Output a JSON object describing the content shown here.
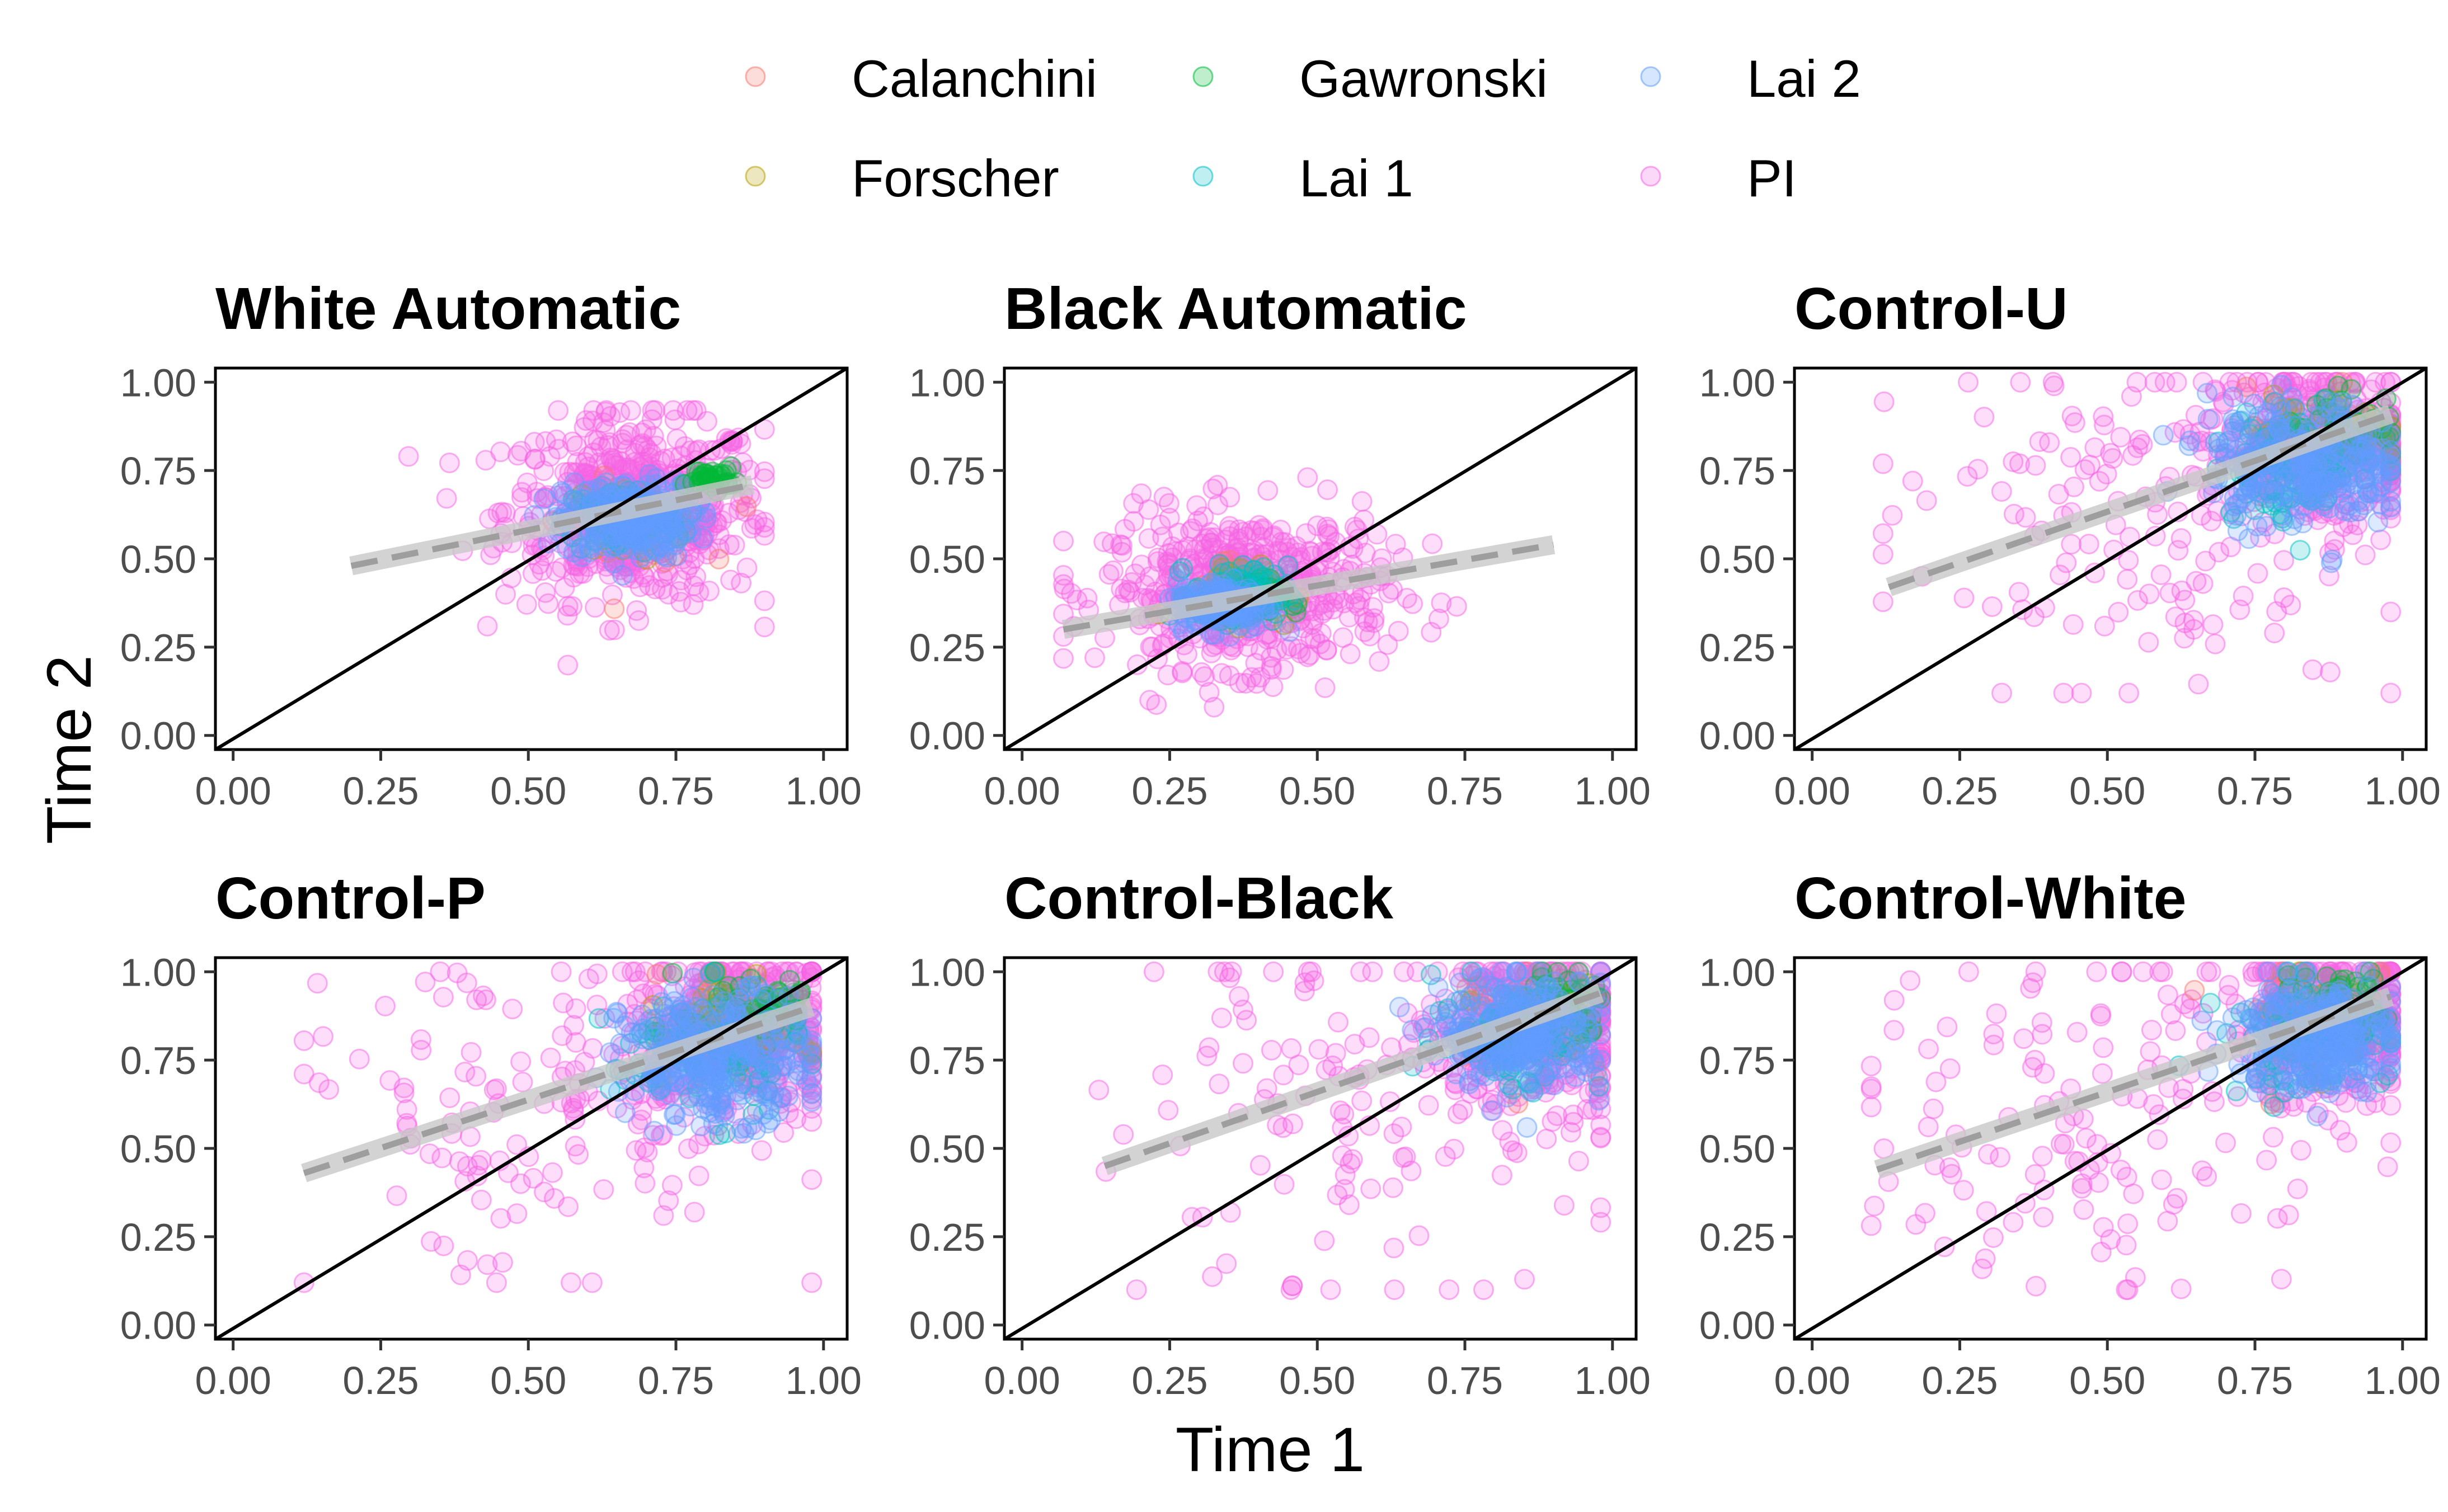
{
  "figure": {
    "xlabel": "Time 1",
    "ylabel": "Time 2"
  },
  "legend": {
    "placement": "top",
    "items": [
      {
        "name": "Calanchini",
        "color": "#F8766D"
      },
      {
        "name": "Forscher",
        "color": "#B79F00"
      },
      {
        "name": "Gawronski",
        "color": "#00BA38"
      },
      {
        "name": "Lai 1",
        "color": "#00BFC4"
      },
      {
        "name": "Lai 2",
        "color": "#619CFF"
      },
      {
        "name": "PI",
        "color": "#F564E3"
      }
    ]
  },
  "colors": {
    "identity_line": "#000000",
    "fit_line": "#9e9e9e",
    "fit_band": "#c8c8c8"
  },
  "chart_data": [
    {
      "type": "scatter",
      "title": "White Automatic",
      "xlim": [
        0,
        1
      ],
      "ylim": [
        0,
        1
      ],
      "x_ticks": [
        "0.00",
        "0.25",
        "0.50",
        "0.75",
        "1.00"
      ],
      "y_ticks": [
        "0.00",
        "0.25",
        "0.50",
        "0.75",
        "1.00"
      ],
      "identity_line": true,
      "fit_line": {
        "x": [
          0.2,
          0.88
        ],
        "y": [
          0.48,
          0.71
        ]
      },
      "clusters": [
        {
          "series": "PI",
          "cx": 0.68,
          "cy": 0.64,
          "sx": 0.11,
          "sy": 0.13,
          "n": 520,
          "xr": [
            0.2,
            0.9
          ],
          "yr": [
            0.14,
            0.92
          ]
        },
        {
          "series": "Calanchini",
          "cx": 0.68,
          "cy": 0.6,
          "sx": 0.06,
          "sy": 0.06,
          "n": 25,
          "xr": [
            0.45,
            0.88
          ],
          "yr": [
            0.35,
            0.8
          ]
        },
        {
          "series": "Forscher",
          "cx": 0.67,
          "cy": 0.61,
          "sx": 0.05,
          "sy": 0.05,
          "n": 20,
          "xr": [
            0.45,
            0.88
          ],
          "yr": [
            0.4,
            0.8
          ]
        },
        {
          "series": "Lai 1",
          "cx": 0.66,
          "cy": 0.61,
          "sx": 0.05,
          "sy": 0.05,
          "n": 90,
          "xr": [
            0.45,
            0.88
          ],
          "yr": [
            0.45,
            0.78
          ]
        },
        {
          "series": "Lai 2",
          "cx": 0.67,
          "cy": 0.61,
          "sx": 0.055,
          "sy": 0.055,
          "n": 240,
          "xr": [
            0.45,
            0.88
          ],
          "yr": [
            0.45,
            0.8
          ]
        },
        {
          "series": "Gawronski",
          "cx": 0.81,
          "cy": 0.73,
          "sx": 0.02,
          "sy": 0.015,
          "n": 35,
          "xr": [
            0.75,
            0.88
          ],
          "yr": [
            0.68,
            0.77
          ]
        }
      ]
    },
    {
      "type": "scatter",
      "title": "Black Automatic",
      "xlim": [
        0,
        1
      ],
      "ylim": [
        0,
        1
      ],
      "x_ticks": [
        "0.00",
        "0.25",
        "0.50",
        "0.75",
        "1.00"
      ],
      "y_ticks": [
        "0.00",
        "0.25",
        "0.50",
        "0.75",
        "1.00"
      ],
      "identity_line": true,
      "fit_line": {
        "x": [
          0.07,
          0.9
        ],
        "y": [
          0.3,
          0.54
        ]
      },
      "clusters": [
        {
          "series": "PI",
          "cx": 0.38,
          "cy": 0.41,
          "sx": 0.12,
          "sy": 0.11,
          "n": 520,
          "xr": [
            0.07,
            0.9
          ],
          "yr": [
            0.08,
            0.82
          ]
        },
        {
          "series": "Calanchini",
          "cx": 0.37,
          "cy": 0.42,
          "sx": 0.05,
          "sy": 0.05,
          "n": 20,
          "xr": [
            0.2,
            0.55
          ],
          "yr": [
            0.25,
            0.66
          ]
        },
        {
          "series": "Forscher",
          "cx": 0.36,
          "cy": 0.42,
          "sx": 0.05,
          "sy": 0.05,
          "n": 20,
          "xr": [
            0.2,
            0.55
          ],
          "yr": [
            0.25,
            0.66
          ]
        },
        {
          "series": "Gawronski",
          "cx": 0.38,
          "cy": 0.38,
          "sx": 0.03,
          "sy": 0.03,
          "n": 60,
          "xr": [
            0.3,
            0.47
          ],
          "yr": [
            0.3,
            0.5
          ]
        },
        {
          "series": "Lai 1",
          "cx": 0.37,
          "cy": 0.4,
          "sx": 0.04,
          "sy": 0.04,
          "n": 90,
          "xr": [
            0.25,
            0.5
          ],
          "yr": [
            0.28,
            0.52
          ]
        },
        {
          "series": "Lai 2",
          "cx": 0.34,
          "cy": 0.37,
          "sx": 0.04,
          "sy": 0.035,
          "n": 160,
          "xr": [
            0.25,
            0.5
          ],
          "yr": [
            0.28,
            0.5
          ]
        }
      ]
    },
    {
      "type": "scatter",
      "title": "Control-U",
      "xlim": [
        0,
        1
      ],
      "ylim": [
        0,
        1
      ],
      "x_ticks": [
        "0.00",
        "0.25",
        "0.50",
        "0.75",
        "1.00"
      ],
      "y_ticks": [
        "0.00",
        "0.25",
        "0.50",
        "0.75",
        "1.00"
      ],
      "identity_line": true,
      "fit_line": {
        "x": [
          0.13,
          0.98
        ],
        "y": [
          0.42,
          0.91
        ]
      },
      "clusters": [
        {
          "series": "PI",
          "cx": 0.86,
          "cy": 0.82,
          "sx": 0.1,
          "sy": 0.12,
          "n": 380,
          "xr": [
            0.55,
            0.98
          ],
          "yr": [
            0.4,
            1.0
          ]
        },
        {
          "series": "PI",
          "cx": 0.5,
          "cy": 0.6,
          "sx": 0.22,
          "sy": 0.25,
          "n": 140,
          "xr": [
            0.12,
            0.98
          ],
          "yr": [
            0.12,
            1.0
          ]
        },
        {
          "series": "Calanchini",
          "cx": 0.86,
          "cy": 0.86,
          "sx": 0.06,
          "sy": 0.06,
          "n": 25,
          "xr": [
            0.6,
            0.98
          ],
          "yr": [
            0.35,
            1.0
          ]
        },
        {
          "series": "Forscher",
          "cx": 0.88,
          "cy": 0.87,
          "sx": 0.05,
          "sy": 0.05,
          "n": 25,
          "xr": [
            0.65,
            0.98
          ],
          "yr": [
            0.6,
            1.0
          ]
        },
        {
          "series": "Gawronski",
          "cx": 0.9,
          "cy": 0.88,
          "sx": 0.05,
          "sy": 0.05,
          "n": 40,
          "xr": [
            0.65,
            0.98
          ],
          "yr": [
            0.45,
            1.0
          ]
        },
        {
          "series": "Lai 1",
          "cx": 0.82,
          "cy": 0.77,
          "sx": 0.07,
          "sy": 0.08,
          "n": 90,
          "xr": [
            0.6,
            0.98
          ],
          "yr": [
            0.45,
            1.0
          ]
        },
        {
          "series": "Lai 2",
          "cx": 0.83,
          "cy": 0.77,
          "sx": 0.08,
          "sy": 0.09,
          "n": 260,
          "xr": [
            0.58,
            0.98
          ],
          "yr": [
            0.44,
            1.0
          ]
        }
      ]
    },
    {
      "type": "scatter",
      "title": "Control-P",
      "xlim": [
        0,
        1
      ],
      "ylim": [
        0,
        1
      ],
      "x_ticks": [
        "0.00",
        "0.25",
        "0.50",
        "0.75",
        "1.00"
      ],
      "y_ticks": [
        "0.00",
        "0.25",
        "0.50",
        "0.75",
        "1.00"
      ],
      "identity_line": true,
      "fit_line": {
        "x": [
          0.12,
          0.98
        ],
        "y": [
          0.43,
          0.9
        ]
      },
      "clusters": [
        {
          "series": "PI",
          "cx": 0.86,
          "cy": 0.82,
          "sx": 0.1,
          "sy": 0.12,
          "n": 380,
          "xr": [
            0.55,
            0.98
          ],
          "yr": [
            0.4,
            1.0
          ]
        },
        {
          "series": "PI",
          "cx": 0.5,
          "cy": 0.6,
          "sx": 0.22,
          "sy": 0.25,
          "n": 140,
          "xr": [
            0.12,
            0.98
          ],
          "yr": [
            0.12,
            1.0
          ]
        },
        {
          "series": "Calanchini",
          "cx": 0.84,
          "cy": 0.84,
          "sx": 0.07,
          "sy": 0.08,
          "n": 25,
          "xr": [
            0.45,
            0.98
          ],
          "yr": [
            0.3,
            1.0
          ]
        },
        {
          "series": "Forscher",
          "cx": 0.86,
          "cy": 0.86,
          "sx": 0.06,
          "sy": 0.06,
          "n": 25,
          "xr": [
            0.6,
            0.98
          ],
          "yr": [
            0.5,
            1.0
          ]
        },
        {
          "series": "Gawronski",
          "cx": 0.88,
          "cy": 0.9,
          "sx": 0.06,
          "sy": 0.06,
          "n": 50,
          "xr": [
            0.65,
            0.98
          ],
          "yr": [
            0.3,
            1.0
          ]
        },
        {
          "series": "Lai 1",
          "cx": 0.8,
          "cy": 0.76,
          "sx": 0.08,
          "sy": 0.09,
          "n": 90,
          "xr": [
            0.55,
            0.98
          ],
          "yr": [
            0.4,
            1.0
          ]
        },
        {
          "series": "Lai 2",
          "cx": 0.82,
          "cy": 0.76,
          "sx": 0.08,
          "sy": 0.09,
          "n": 270,
          "xr": [
            0.55,
            0.98
          ],
          "yr": [
            0.45,
            1.0
          ]
        }
      ]
    },
    {
      "type": "scatter",
      "title": "Control-Black",
      "xlim": [
        0,
        1
      ],
      "ylim": [
        0,
        1
      ],
      "x_ticks": [
        "0.00",
        "0.25",
        "0.50",
        "0.75",
        "1.00"
      ],
      "y_ticks": [
        "0.00",
        "0.25",
        "0.50",
        "0.75",
        "1.00"
      ],
      "identity_line": true,
      "fit_line": {
        "x": [
          0.14,
          0.98
        ],
        "y": [
          0.45,
          0.94
        ]
      },
      "clusters": [
        {
          "series": "PI",
          "cx": 0.87,
          "cy": 0.85,
          "sx": 0.09,
          "sy": 0.11,
          "n": 360,
          "xr": [
            0.55,
            0.98
          ],
          "yr": [
            0.4,
            1.0
          ]
        },
        {
          "series": "PI",
          "cx": 0.55,
          "cy": 0.6,
          "sx": 0.22,
          "sy": 0.26,
          "n": 140,
          "xr": [
            0.13,
            0.98
          ],
          "yr": [
            0.1,
            1.0
          ]
        },
        {
          "series": "Calanchini",
          "cx": 0.86,
          "cy": 0.86,
          "sx": 0.06,
          "sy": 0.07,
          "n": 20,
          "xr": [
            0.6,
            0.98
          ],
          "yr": [
            0.25,
            1.0
          ]
        },
        {
          "series": "Forscher",
          "cx": 0.88,
          "cy": 0.88,
          "sx": 0.05,
          "sy": 0.05,
          "n": 20,
          "xr": [
            0.65,
            0.98
          ],
          "yr": [
            0.45,
            1.0
          ]
        },
        {
          "series": "Gawronski",
          "cx": 0.92,
          "cy": 0.91,
          "sx": 0.04,
          "sy": 0.05,
          "n": 45,
          "xr": [
            0.7,
            0.98
          ],
          "yr": [
            0.5,
            1.0
          ]
        },
        {
          "series": "Lai 1",
          "cx": 0.84,
          "cy": 0.82,
          "sx": 0.07,
          "sy": 0.08,
          "n": 80,
          "xr": [
            0.6,
            0.98
          ],
          "yr": [
            0.5,
            1.0
          ]
        },
        {
          "series": "Lai 2",
          "cx": 0.85,
          "cy": 0.83,
          "sx": 0.07,
          "sy": 0.08,
          "n": 250,
          "xr": [
            0.6,
            0.98
          ],
          "yr": [
            0.5,
            1.0
          ]
        }
      ]
    },
    {
      "type": "scatter",
      "title": "Control-White",
      "xlim": [
        0,
        1
      ],
      "ylim": [
        0,
        1
      ],
      "x_ticks": [
        "0.00",
        "0.25",
        "0.50",
        "0.75",
        "1.00"
      ],
      "y_ticks": [
        "0.00",
        "0.25",
        "0.50",
        "0.75",
        "1.00"
      ],
      "identity_line": true,
      "fit_line": {
        "x": [
          0.11,
          0.98
        ],
        "y": [
          0.44,
          0.93
        ]
      },
      "clusters": [
        {
          "series": "PI",
          "cx": 0.87,
          "cy": 0.85,
          "sx": 0.09,
          "sy": 0.11,
          "n": 360,
          "xr": [
            0.55,
            0.98
          ],
          "yr": [
            0.4,
            1.0
          ]
        },
        {
          "series": "PI",
          "cx": 0.5,
          "cy": 0.6,
          "sx": 0.22,
          "sy": 0.26,
          "n": 140,
          "xr": [
            0.1,
            0.98
          ],
          "yr": [
            0.1,
            1.0
          ]
        },
        {
          "series": "Calanchini",
          "cx": 0.86,
          "cy": 0.84,
          "sx": 0.07,
          "sy": 0.09,
          "n": 20,
          "xr": [
            0.6,
            0.98
          ],
          "yr": [
            0.25,
            1.0
          ]
        },
        {
          "series": "Forscher",
          "cx": 0.88,
          "cy": 0.86,
          "sx": 0.05,
          "sy": 0.06,
          "n": 20,
          "xr": [
            0.65,
            0.98
          ],
          "yr": [
            0.45,
            1.0
          ]
        },
        {
          "series": "Gawronski",
          "cx": 0.9,
          "cy": 0.89,
          "sx": 0.05,
          "sy": 0.06,
          "n": 45,
          "xr": [
            0.7,
            0.98
          ],
          "yr": [
            0.35,
            1.0
          ]
        },
        {
          "series": "Lai 1",
          "cx": 0.84,
          "cy": 0.81,
          "sx": 0.07,
          "sy": 0.08,
          "n": 80,
          "xr": [
            0.6,
            0.98
          ],
          "yr": [
            0.5,
            1.0
          ]
        },
        {
          "series": "Lai 2",
          "cx": 0.85,
          "cy": 0.82,
          "sx": 0.07,
          "sy": 0.08,
          "n": 250,
          "xr": [
            0.6,
            0.98
          ],
          "yr": [
            0.5,
            1.0
          ]
        }
      ]
    }
  ]
}
